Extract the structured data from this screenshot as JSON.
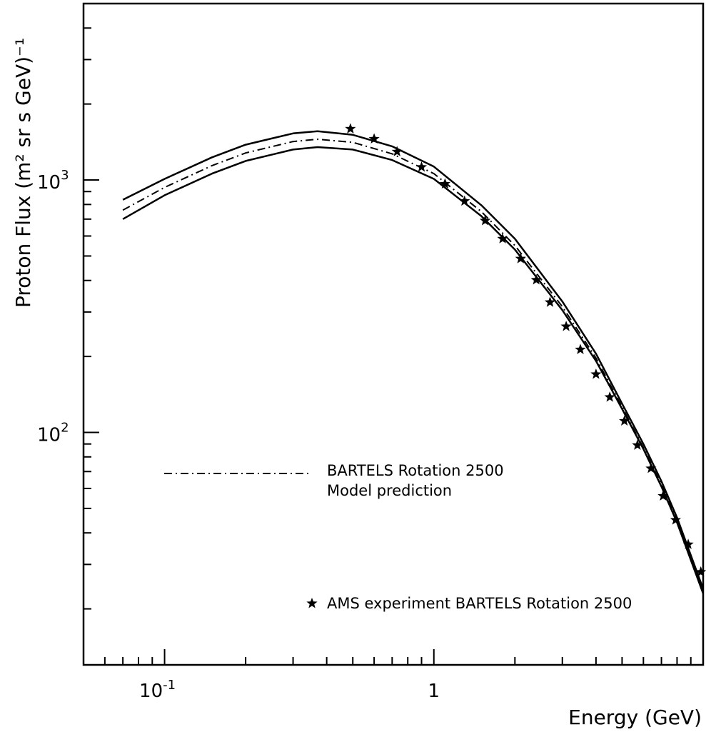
{
  "chart_data": {
    "type": "line",
    "xlabel": "Energy (GeV)",
    "ylabel": "Proton Flux (m² sr s GeV)⁻¹",
    "x_scale": "log",
    "y_scale": "log",
    "xlim": [
      0.05,
      10
    ],
    "ylim": [
      12,
      5000
    ],
    "grid": false,
    "x_ticks": [
      {
        "value": 0.1,
        "base": "10",
        "exp": "-1"
      },
      {
        "value": 1,
        "base": "1",
        "exp": ""
      }
    ],
    "y_ticks": [
      {
        "value": 100,
        "base": "10",
        "exp": "2"
      },
      {
        "value": 1000,
        "base": "10",
        "exp": "3"
      }
    ],
    "legend": [
      {
        "series": "model",
        "lines": [
          "BARTELS Rotation 2500",
          "Model prediction"
        ],
        "marker": "dash-dot"
      },
      {
        "series": "ams",
        "lines": [
          "AMS experiment BARTELS Rotation 2500"
        ],
        "marker": "star"
      }
    ],
    "series": [
      {
        "id": "upper",
        "style": "solid",
        "x": [
          0.07,
          0.1,
          0.15,
          0.2,
          0.3,
          0.37,
          0.5,
          0.7,
          1.0,
          1.5,
          2.0,
          3.0,
          4.0,
          5.0,
          6.0,
          7.0,
          8.0,
          10.0
        ],
        "y": [
          835,
          1010,
          1230,
          1380,
          1530,
          1560,
          1510,
          1360,
          1130,
          795,
          585,
          330,
          205,
          130,
          90,
          64,
          46,
          24
        ]
      },
      {
        "id": "model",
        "style": "dash-dot",
        "x": [
          0.07,
          0.1,
          0.15,
          0.2,
          0.3,
          0.37,
          0.5,
          0.7,
          1.0,
          1.5,
          2.0,
          3.0,
          4.0,
          5.0,
          6.0,
          7.0,
          8.0,
          10.0
        ],
        "y": [
          760,
          935,
          1140,
          1280,
          1420,
          1450,
          1410,
          1270,
          1060,
          750,
          550,
          315,
          197,
          126,
          87,
          62,
          45,
          23.5
        ]
      },
      {
        "id": "lower",
        "style": "solid",
        "x": [
          0.07,
          0.1,
          0.15,
          0.2,
          0.3,
          0.37,
          0.5,
          0.7,
          1.0,
          1.5,
          2.0,
          3.0,
          4.0,
          5.0,
          6.0,
          7.0,
          8.0,
          10.0
        ],
        "y": [
          700,
          870,
          1060,
          1190,
          1320,
          1350,
          1320,
          1200,
          1010,
          720,
          530,
          305,
          192,
          124,
          86,
          61,
          44,
          23
        ]
      },
      {
        "id": "ams",
        "style": "star",
        "x": [
          0.49,
          0.6,
          0.73,
          0.9,
          1.1,
          1.3,
          1.55,
          1.8,
          2.1,
          2.4,
          2.7,
          3.1,
          3.5,
          4.0,
          4.5,
          5.1,
          5.7,
          6.4,
          7.1,
          7.9,
          8.8,
          9.8
        ],
        "y": [
          1595,
          1455,
          1295,
          1125,
          965,
          825,
          690,
          585,
          488,
          402,
          328,
          263,
          213,
          170,
          138,
          111,
          89,
          72,
          56,
          45,
          36,
          28
        ]
      }
    ]
  }
}
